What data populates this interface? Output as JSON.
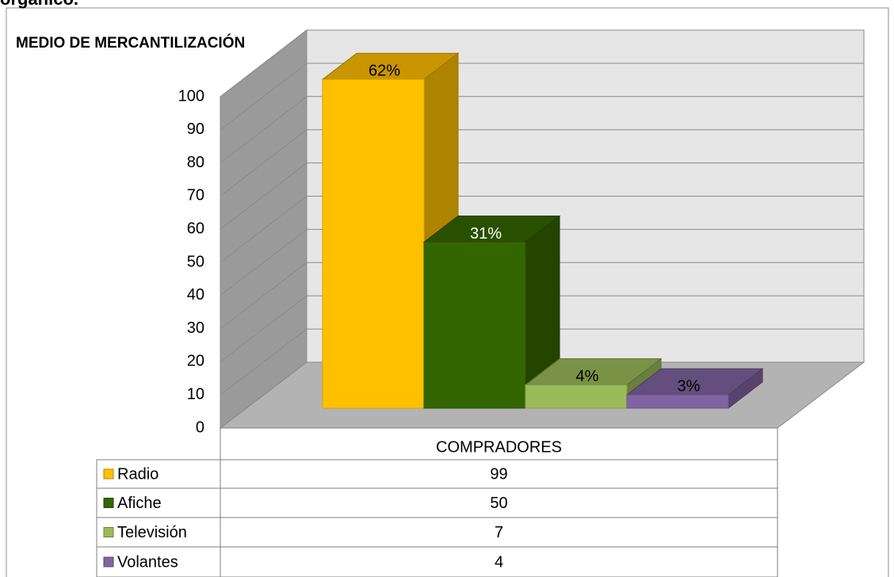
{
  "heading": "orgánico.",
  "chart_data": {
    "type": "bar3d",
    "title": "MEDIO DE MERCANTILIZACIÓN",
    "categories": [
      "COMPRADORES"
    ],
    "series": [
      {
        "name": "Radio",
        "color": "#FFC000",
        "values": [
          99
        ],
        "percent": [
          62
        ],
        "percent_labels": [
          "62%"
        ]
      },
      {
        "name": "Afiche",
        "color": "#336600",
        "values": [
          50
        ],
        "percent": [
          31
        ],
        "percent_labels": [
          "31%"
        ]
      },
      {
        "name": "Televisión",
        "color": "#9BBB59",
        "values": [
          7
        ],
        "percent": [
          4
        ],
        "percent_labels": [
          "4%"
        ]
      },
      {
        "name": "Volantes",
        "color": "#8064A2",
        "values": [
          4
        ],
        "percent": [
          3
        ],
        "percent_labels": [
          "3%"
        ]
      }
    ],
    "ylim": [
      0,
      100
    ],
    "yticks": [
      0,
      10,
      20,
      30,
      40,
      50,
      60,
      70,
      80,
      90,
      100
    ],
    "grid": true,
    "data_table": true
  }
}
